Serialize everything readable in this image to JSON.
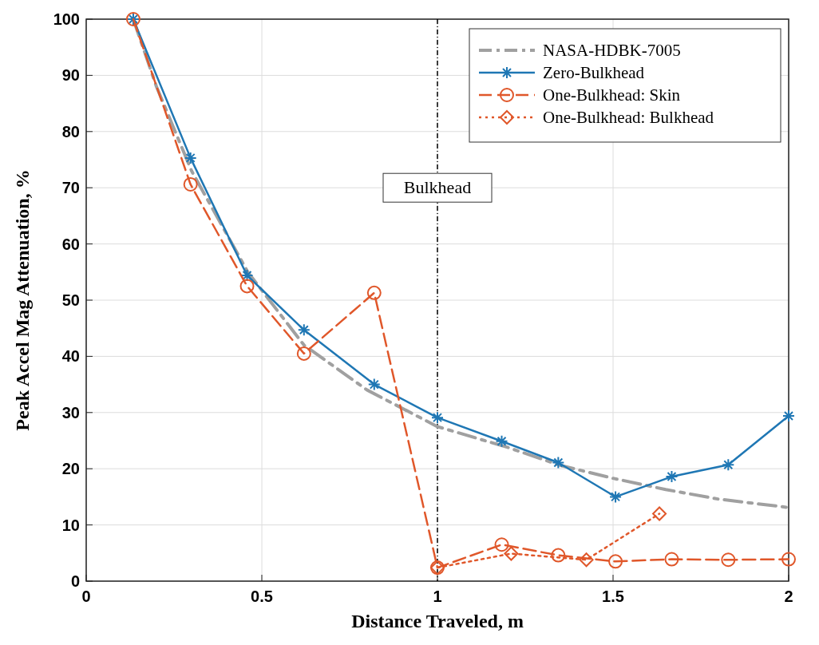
{
  "chart_data": {
    "type": "line",
    "xlabel": "Distance Traveled, m",
    "ylabel": "Peak Accel Mag Attenuation, %",
    "xlim": [
      0,
      2
    ],
    "ylim": [
      0,
      100
    ],
    "xticks": [
      0,
      0.5,
      1,
      1.5,
      2
    ],
    "yticks": [
      0,
      10,
      20,
      30,
      40,
      50,
      60,
      70,
      80,
      90,
      100
    ],
    "grid": true,
    "legend": "top right",
    "series": [
      {
        "name": "NASA-HDBK-7005",
        "color": "#a0a0a0",
        "line_style": "dashed",
        "marker": "none",
        "x": [
          0.134,
          0.2,
          0.3,
          0.46,
          0.62,
          0.8,
          1.0,
          1.2,
          1.35,
          1.5,
          1.65,
          1.8,
          2.0
        ],
        "values": [
          100,
          88,
          73,
          55,
          42,
          34,
          27.5,
          23.8,
          20.6,
          18.3,
          16.3,
          14.6,
          13.1
        ]
      },
      {
        "name": "Zero-Bulkhead",
        "color": "#1f77b4",
        "line_style": "solid",
        "marker": "cross",
        "x": [
          0.134,
          0.297,
          0.458,
          0.62,
          0.82,
          1.0,
          1.183,
          1.344,
          1.507,
          1.667,
          1.828,
          2.0
        ],
        "values": [
          100,
          75.3,
          54.4,
          44.7,
          35.0,
          29.1,
          24.9,
          21.1,
          15.0,
          18.6,
          20.7,
          29.4
        ]
      },
      {
        "name": "One-Bulkhead: Skin",
        "color": "#e0572a",
        "line_style": "dashed",
        "marker": "circle",
        "x": [
          0.134,
          0.297,
          0.458,
          0.62,
          0.82,
          1.0,
          1.183,
          1.344,
          1.507,
          1.667,
          1.828,
          2.0
        ],
        "values": [
          100,
          70.6,
          52.5,
          40.5,
          51.3,
          2.4,
          6.5,
          4.6,
          3.5,
          3.9,
          3.8,
          3.9
        ]
      },
      {
        "name": "One-Bulkhead: Bulkhead",
        "color": "#e0572a",
        "line_style": "dotted",
        "marker": "diamond",
        "x": [
          1.0,
          1.21,
          1.424,
          1.632
        ],
        "values": [
          2.4,
          4.9,
          3.8,
          12.0
        ]
      }
    ],
    "ref_lines": [
      {
        "axis": "x",
        "value": 1,
        "label": "Bulkhead",
        "color": "#000000",
        "line_style": "dashed"
      }
    ]
  }
}
